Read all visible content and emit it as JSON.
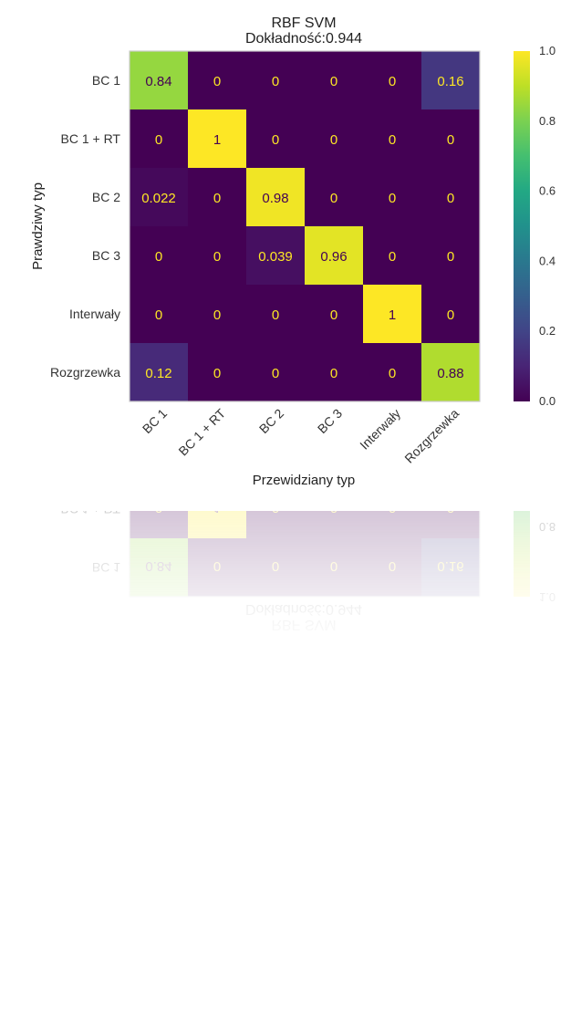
{
  "chart_data": {
    "type": "heatmap",
    "title": "RBF SVM",
    "subtitle": "Dokładność:0.944",
    "xlabel": "Przewidziany typ",
    "ylabel": "Prawdziwy typ",
    "x_categories": [
      "BC 1",
      "BC 1 + RT",
      "BC 2",
      "BC 3",
      "Interwały",
      "Rozgrzewka"
    ],
    "y_categories": [
      "BC 1",
      "BC 1 + RT",
      "BC 2",
      "BC 3",
      "Interwały",
      "Rozgrzewka"
    ],
    "values": [
      [
        0.84,
        0,
        0,
        0,
        0,
        0.16
      ],
      [
        0,
        1,
        0,
        0,
        0,
        0
      ],
      [
        0.022,
        0,
        0.98,
        0,
        0,
        0
      ],
      [
        0,
        0,
        0.039,
        0.96,
        0,
        0
      ],
      [
        0,
        0,
        0,
        0,
        1,
        0
      ],
      [
        0.12,
        0,
        0,
        0,
        0,
        0.88
      ]
    ],
    "value_labels": [
      [
        "0.84",
        "0",
        "0",
        "0",
        "0",
        "0.16"
      ],
      [
        "0",
        "1",
        "0",
        "0",
        "0",
        "0"
      ],
      [
        "0.022",
        "0",
        "0.98",
        "0",
        "0",
        "0"
      ],
      [
        "0",
        "0",
        "0.039",
        "0.96",
        "0",
        "0"
      ],
      [
        "0",
        "0",
        "0",
        "0",
        "1",
        "0"
      ],
      [
        "0.12",
        "0",
        "0",
        "0",
        "0",
        "0.88"
      ]
    ],
    "colormap": "viridis",
    "vmin": 0.0,
    "vmax": 1.0,
    "colorbar_ticks": [
      "0.0",
      "0.2",
      "0.4",
      "0.6",
      "0.8",
      "1.0"
    ],
    "grid": false,
    "legend": "colorbar-right"
  }
}
